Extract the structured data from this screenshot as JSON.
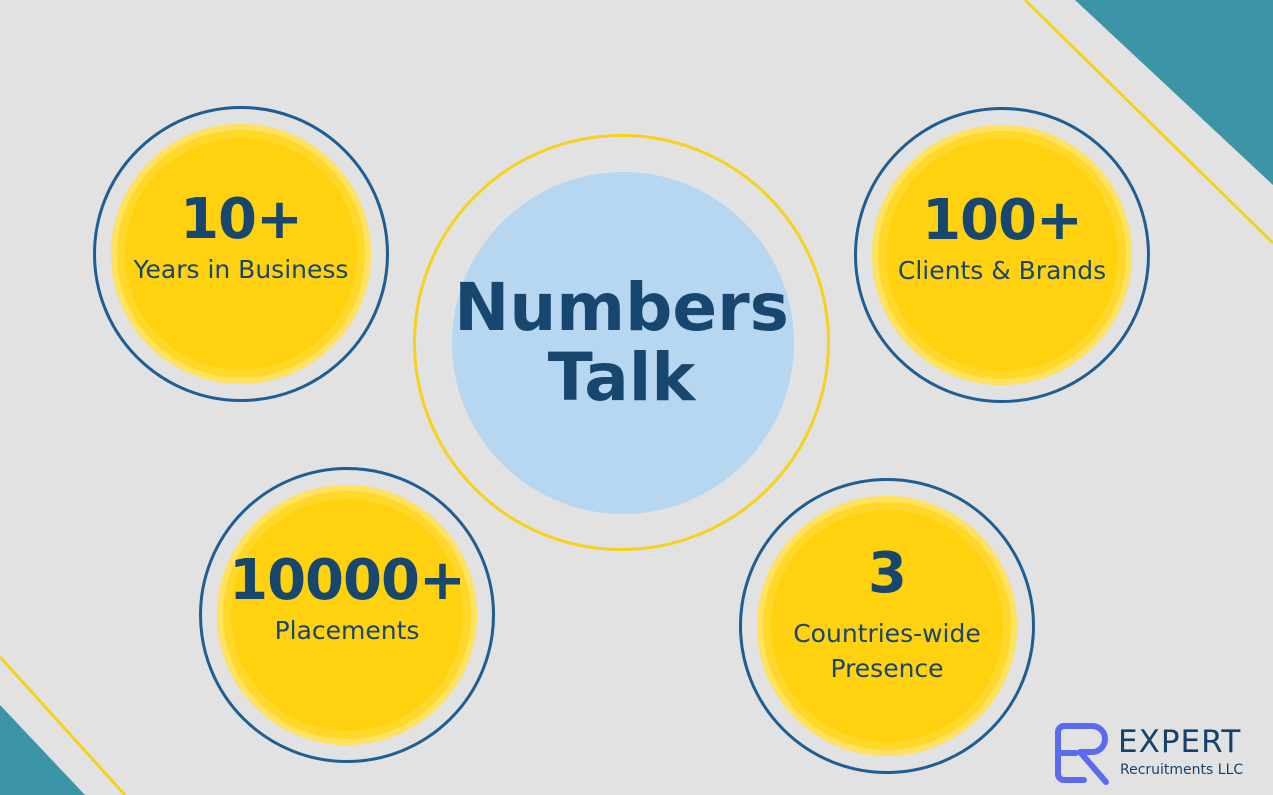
{
  "center": {
    "line1": "Numbers",
    "line2": "Talk"
  },
  "stats": [
    {
      "number": "10+",
      "label": "Years in Business"
    },
    {
      "number": "100+",
      "label": "Clients & Brands"
    },
    {
      "number": "10000+",
      "label": "Placements"
    },
    {
      "number": "3",
      "label_line1": "Countries-wide",
      "label_line2": "Presence"
    }
  ],
  "logo": {
    "word": "EXPERT",
    "sub": "Recruitments LLC"
  },
  "colors": {
    "background": "#e2e2e2",
    "accent_yellow": "#ffd10f",
    "ring_blue": "#1f5e93",
    "text_navy": "#17476e",
    "center_disc": "#b7d6ef",
    "corner_teal": "#3b95a6",
    "logo_purple": "#5b6bf0"
  }
}
